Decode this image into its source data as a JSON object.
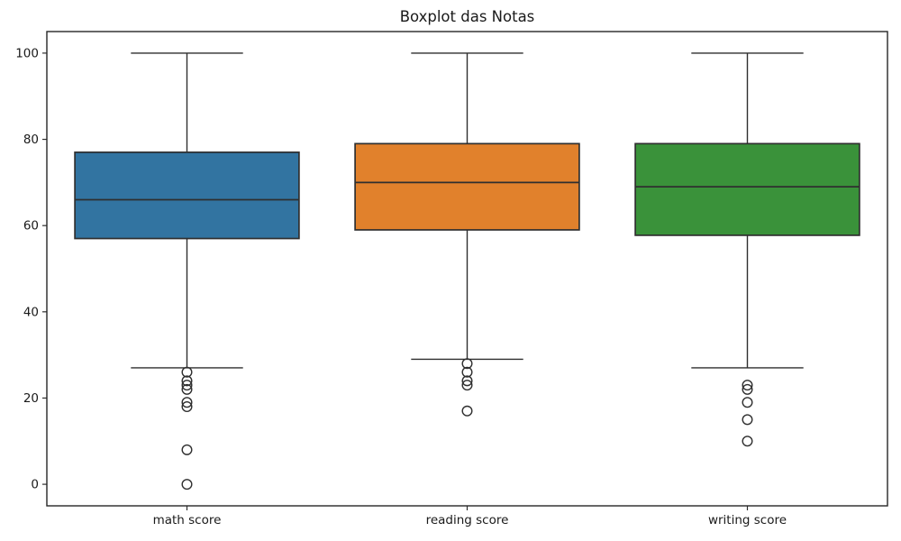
{
  "title": "Boxplot das Notas",
  "chart_data": {
    "type": "boxplot",
    "title": "Boxplot das Notas",
    "categories": [
      "math score",
      "reading score",
      "writing score"
    ],
    "xlabel": "",
    "ylabel": "",
    "ylim": [
      -5,
      105
    ],
    "yticks": [
      0,
      20,
      40,
      60,
      80,
      100
    ],
    "grid": false,
    "legend": false,
    "line_color": "#2f2f2f",
    "background_color": "#ffffff",
    "series": [
      {
        "name": "math score",
        "color": "#3274A1",
        "q1": 57,
        "median": 66,
        "q3": 77,
        "whisker_low": 27,
        "whisker_high": 100,
        "outliers": [
          26,
          24,
          23,
          22,
          19,
          18,
          8,
          0
        ]
      },
      {
        "name": "reading score",
        "color": "#E1812C",
        "q1": 59,
        "median": 70,
        "q3": 79,
        "whisker_low": 29,
        "whisker_high": 100,
        "outliers": [
          28,
          26,
          24,
          23,
          17
        ]
      },
      {
        "name": "writing score",
        "color": "#3A923A",
        "q1": 57.75,
        "median": 69,
        "q3": 79,
        "whisker_low": 27,
        "whisker_high": 100,
        "outliers": [
          23,
          22,
          19,
          15,
          10
        ]
      }
    ]
  }
}
